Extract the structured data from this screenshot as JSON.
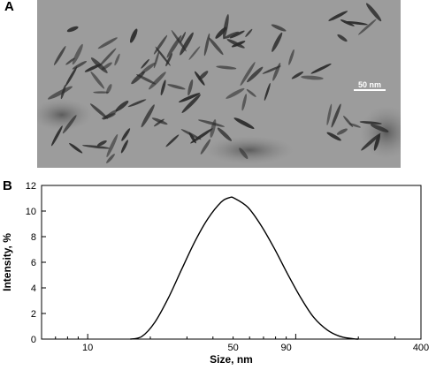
{
  "panel_a": {
    "label": "A",
    "scale_bar_text": "50 nm"
  },
  "panel_b": {
    "label": "B"
  },
  "chart_data": {
    "type": "line",
    "xlabel": "Size, nm",
    "ylabel": "Intensity, %",
    "xscale": "log",
    "xlim": [
      6,
      400
    ],
    "ylim": [
      0,
      12
    ],
    "x_tick_labels": [
      "10",
      "50",
      "90",
      "400"
    ],
    "y_tick_labels": [
      "0",
      "2",
      "4",
      "6",
      "8",
      "10",
      "12"
    ],
    "grid": false,
    "series": [
      {
        "x": [
          16,
          18.2,
          21,
          24.4,
          28.2,
          32.7,
          37.8,
          43.8,
          48,
          50.7,
          58.8,
          68,
          78.8,
          91.3,
          106,
          122,
          142,
          164,
          190,
          200
        ],
        "y": [
          0,
          0.2,
          1.3,
          3.2,
          5.4,
          7.6,
          9.4,
          10.7,
          11.05,
          11.0,
          10.3,
          8.9,
          7.1,
          5.1,
          3.2,
          1.7,
          0.7,
          0.2,
          0.02,
          0
        ]
      }
    ]
  }
}
